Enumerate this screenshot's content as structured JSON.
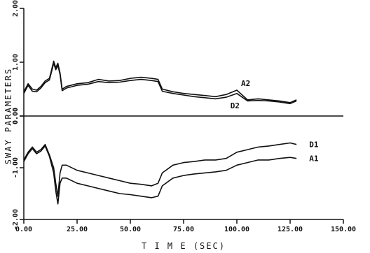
{
  "chart_data": {
    "type": "line",
    "xlabel": "T I M E (SEC)",
    "ylabel": "SWAY PARAMETERS",
    "xlim": [
      0,
      150
    ],
    "x_ticks": [
      "0.00",
      "25.00",
      "50.00",
      "75.00",
      "100.00",
      "125.00",
      "150.00"
    ],
    "grid": false,
    "panels": [
      {
        "position": "top",
        "ylim": [
          0,
          2
        ],
        "y_ticks": [
          "0.00",
          "1.00",
          "2.00"
        ],
        "series": [
          {
            "name": "A2",
            "x": [
              0,
              2,
              4,
              6,
              8,
              10,
              12,
              13,
              14,
              15,
              16,
              17,
              18,
              20,
              25,
              30,
              35,
              40,
              45,
              50,
              55,
              60,
              63,
              65,
              70,
              75,
              80,
              85,
              90,
              95,
              100,
              105,
              110,
              115,
              120,
              125,
              128
            ],
            "y": [
              0.45,
              0.6,
              0.5,
              0.48,
              0.55,
              0.65,
              0.7,
              0.85,
              1.02,
              0.9,
              0.98,
              0.8,
              0.5,
              0.55,
              0.6,
              0.62,
              0.68,
              0.65,
              0.66,
              0.7,
              0.72,
              0.7,
              0.68,
              0.5,
              0.45,
              0.42,
              0.4,
              0.38,
              0.36,
              0.4,
              0.48,
              0.3,
              0.32,
              0.3,
              0.28,
              0.25,
              0.3
            ]
          },
          {
            "name": "D2",
            "x": [
              0,
              2,
              4,
              6,
              8,
              10,
              12,
              13,
              14,
              15,
              16,
              17,
              18,
              20,
              25,
              30,
              35,
              40,
              45,
              50,
              55,
              60,
              63,
              65,
              70,
              75,
              80,
              85,
              90,
              95,
              100,
              105,
              110,
              115,
              120,
              125,
              128
            ],
            "y": [
              0.42,
              0.57,
              0.46,
              0.45,
              0.52,
              0.62,
              0.67,
              0.82,
              0.98,
              0.86,
              0.94,
              0.77,
              0.47,
              0.52,
              0.57,
              0.59,
              0.64,
              0.62,
              0.63,
              0.66,
              0.68,
              0.66,
              0.64,
              0.46,
              0.42,
              0.39,
              0.36,
              0.34,
              0.32,
              0.35,
              0.42,
              0.28,
              0.29,
              0.28,
              0.26,
              0.23,
              0.28
            ]
          }
        ]
      },
      {
        "position": "bottom",
        "ylim": [
          -2,
          0
        ],
        "y_ticks": [
          "0.00",
          "-1.00",
          "-2.00"
        ],
        "series": [
          {
            "name": "D1",
            "x": [
              0,
              2,
              4,
              6,
              8,
              10,
              12,
              14,
              15,
              16,
              17,
              18,
              20,
              25,
              30,
              35,
              40,
              45,
              50,
              55,
              60,
              63,
              65,
              70,
              75,
              80,
              85,
              90,
              95,
              100,
              105,
              110,
              115,
              120,
              125,
              128
            ],
            "y": [
              -0.85,
              -0.7,
              -0.6,
              -0.7,
              -0.65,
              -0.55,
              -0.75,
              -1.0,
              -1.3,
              -1.55,
              -1.1,
              -0.95,
              -0.95,
              -1.05,
              -1.1,
              -1.15,
              -1.2,
              -1.25,
              -1.3,
              -1.32,
              -1.35,
              -1.3,
              -1.1,
              -0.95,
              -0.9,
              -0.88,
              -0.85,
              -0.85,
              -0.82,
              -0.7,
              -0.65,
              -0.6,
              -0.58,
              -0.55,
              -0.52,
              -0.55
            ]
          },
          {
            "name": "A1",
            "x": [
              0,
              2,
              4,
              6,
              8,
              10,
              12,
              14,
              15,
              16,
              17,
              18,
              20,
              25,
              30,
              35,
              40,
              45,
              50,
              55,
              60,
              63,
              65,
              70,
              75,
              80,
              85,
              90,
              95,
              100,
              105,
              110,
              115,
              120,
              125,
              128
            ],
            "y": [
              -0.88,
              -0.73,
              -0.63,
              -0.73,
              -0.68,
              -0.58,
              -0.78,
              -1.1,
              -1.45,
              -1.7,
              -1.3,
              -1.2,
              -1.2,
              -1.3,
              -1.35,
              -1.4,
              -1.45,
              -1.5,
              -1.52,
              -1.55,
              -1.58,
              -1.55,
              -1.35,
              -1.2,
              -1.15,
              -1.12,
              -1.1,
              -1.08,
              -1.05,
              -0.95,
              -0.9,
              -0.85,
              -0.85,
              -0.82,
              -0.8,
              -0.82
            ]
          }
        ]
      }
    ]
  }
}
